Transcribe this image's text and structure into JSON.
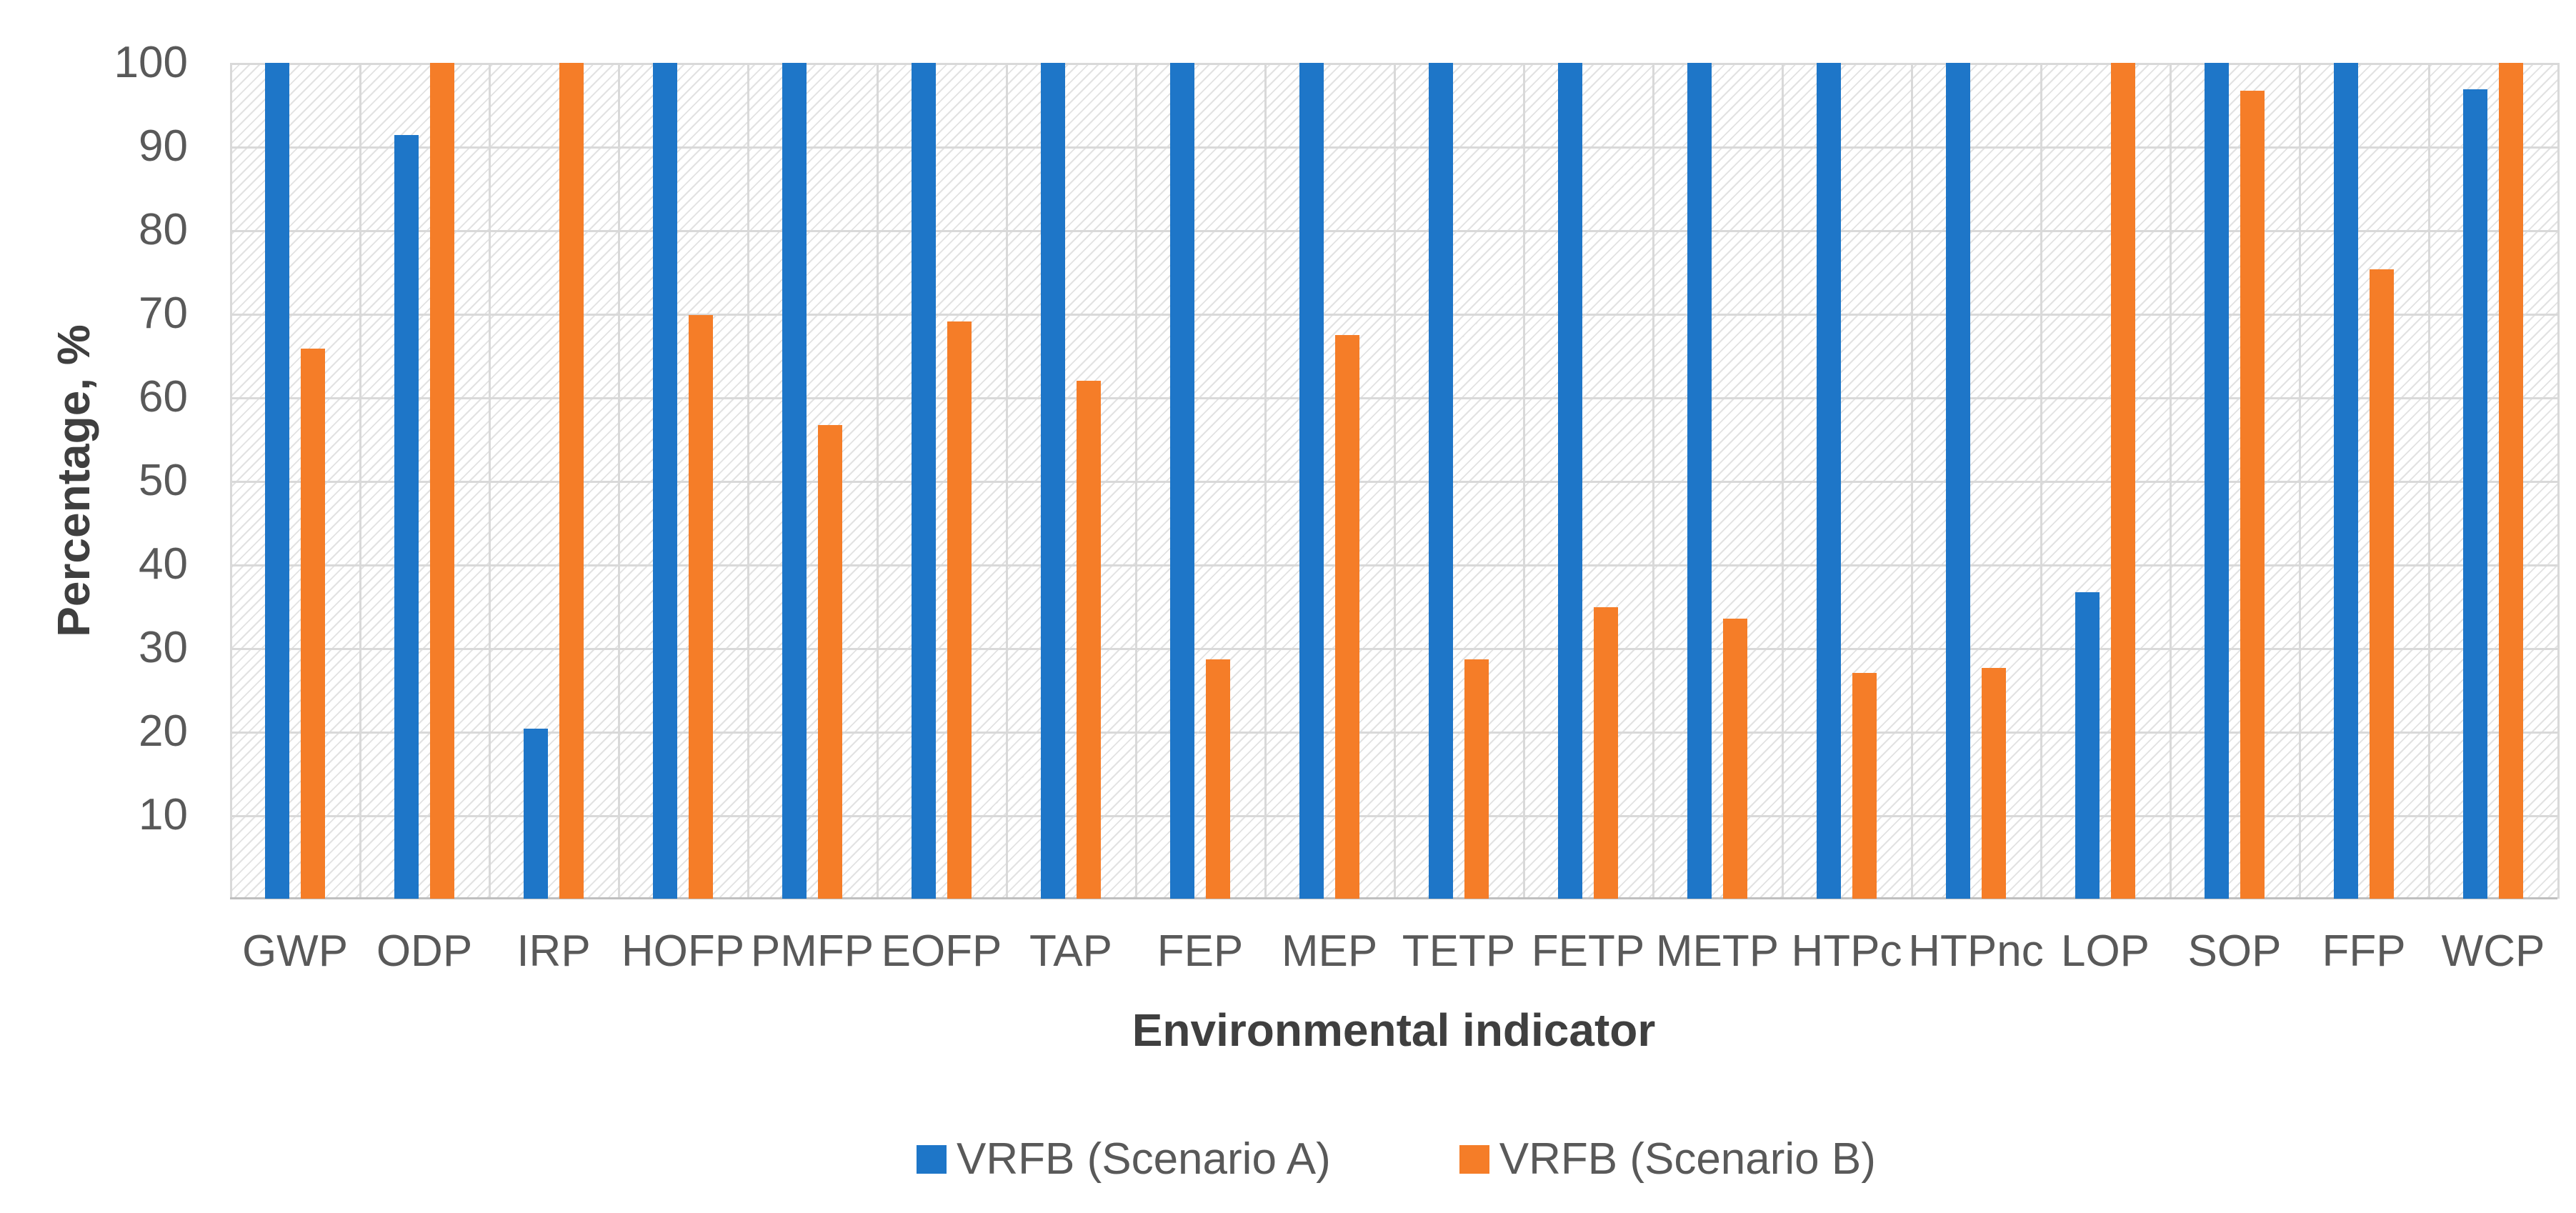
{
  "chart_data": {
    "type": "bar",
    "title": "",
    "xlabel": "Environmental indicator",
    "ylabel": "Percentage, %",
    "ylim": [
      0,
      100
    ],
    "ytick_interval": 10,
    "yticks": [
      100,
      90,
      80,
      70,
      60,
      50,
      40,
      30,
      20,
      10
    ],
    "grid": "horizontal and vertical major gridlines, light gray, hatched plot background",
    "legend_position": "bottom-center",
    "categories": [
      "GWP",
      "ODP",
      "IRP",
      "HOFP",
      "PMFP",
      "EOFP",
      "TAP",
      "FEP",
      "MEP",
      "TETP",
      "FETP",
      "METP",
      "HTPc",
      "HTPnc",
      "LOP",
      "SOP",
      "FFP",
      "WCP"
    ],
    "series": [
      {
        "name": "VRFB (Scenario A)",
        "color": "#1e76c8",
        "values": [
          100,
          91.4,
          20.3,
          100,
          100,
          100,
          100,
          100,
          100,
          100,
          100,
          100,
          100,
          100,
          36.7,
          100,
          100,
          96.8
        ]
      },
      {
        "name": "VRFB (Scenario B)",
        "color": "#f57d28",
        "values": [
          65.8,
          100,
          100,
          69.8,
          56.7,
          69.1,
          62,
          28.6,
          67.4,
          28.6,
          34.9,
          33.5,
          27,
          27.6,
          100,
          96.7,
          75.3,
          100
        ]
      }
    ]
  },
  "style_colors": {
    "gridline": "#d9d9d9",
    "axis_line": "#bfbfbf",
    "tick_text": "#595959",
    "title_text": "#3f3f3f",
    "hatch": "#e2e2e2"
  }
}
